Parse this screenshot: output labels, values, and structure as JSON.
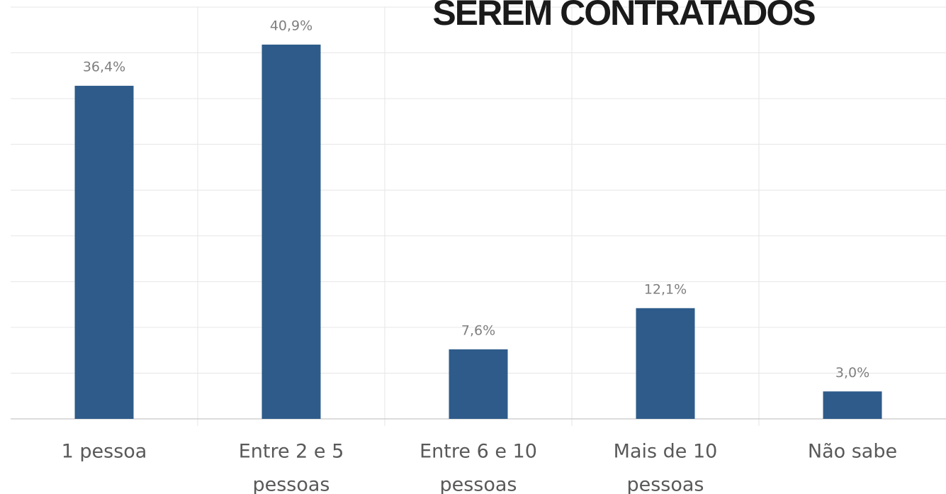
{
  "chart_data": {
    "type": "bar",
    "title": "SEREM CONTRATADOS",
    "categories": [
      [
        "1 pessoa"
      ],
      [
        "Entre 2 e 5",
        "pessoas"
      ],
      [
        "Entre 6 e 10",
        "pessoas"
      ],
      [
        "Mais de 10",
        "pessoas"
      ],
      [
        "Não sabe"
      ]
    ],
    "values": [
      36.4,
      40.9,
      7.6,
      12.1,
      3.0
    ],
    "value_labels": [
      "36,4%",
      "40,9%",
      "7,6%",
      "12,1%",
      "3,0%"
    ],
    "color": "#2e5b8a",
    "ylim": [
      0,
      45
    ],
    "yticks": [
      0,
      5,
      10,
      15,
      20,
      25,
      30,
      35,
      40,
      45
    ],
    "grid": true
  }
}
